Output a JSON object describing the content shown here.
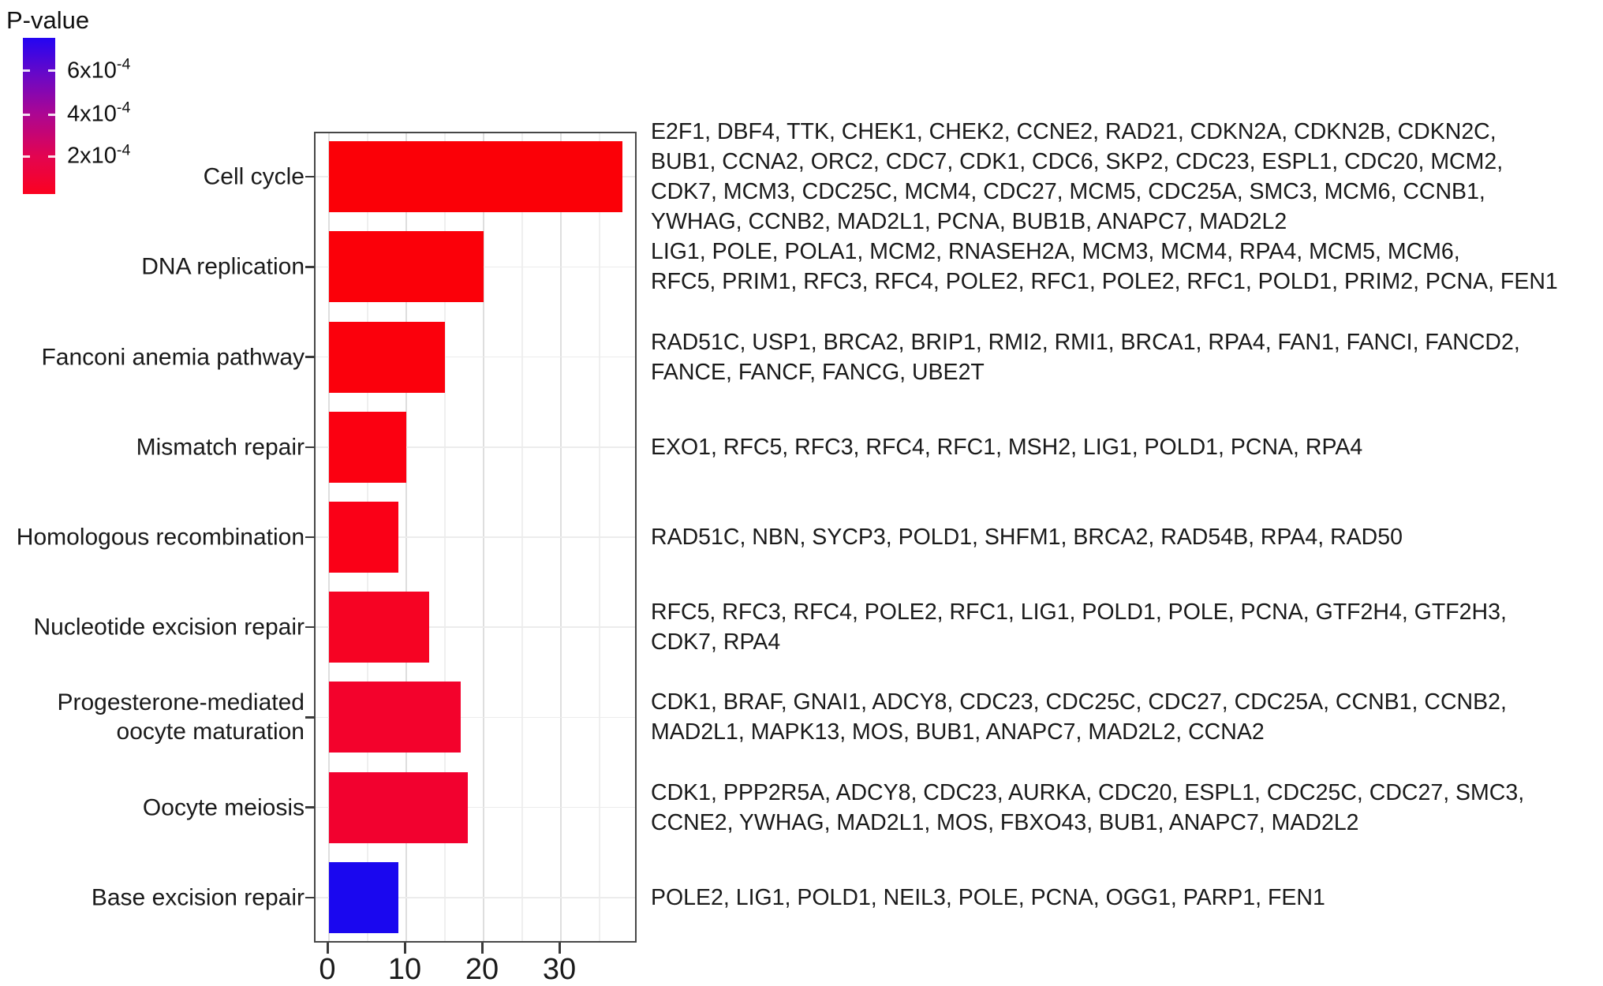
{
  "legend": {
    "title": "P-value",
    "ticks": [
      {
        "base": "6x10",
        "exp": "-4",
        "pos_pct": 21
      },
      {
        "base": "4x10",
        "exp": "-4",
        "pos_pct": 49
      },
      {
        "base": "2x10",
        "exp": "-4",
        "pos_pct": 76
      }
    ],
    "gradient": [
      {
        "color": "#2405F2",
        "stop": 0
      },
      {
        "color": "#6A08C6",
        "stop": 24
      },
      {
        "color": "#AA0694",
        "stop": 48
      },
      {
        "color": "#E30450",
        "stop": 76
      },
      {
        "color": "#FB0220",
        "stop": 100
      }
    ]
  },
  "chart_data": {
    "type": "bar",
    "orientation": "horizontal",
    "title": "",
    "xlabel": "",
    "ylabel": "",
    "xlim": [
      0,
      40
    ],
    "x_ticks": [
      "0",
      "10",
      "20",
      "30"
    ],
    "x_tick_values": [
      0,
      10,
      20,
      30
    ],
    "grid": "on",
    "legend_position": "top-left",
    "color_scale_label": "P-value",
    "categories": [
      "Cell cycle",
      "DNA replication",
      "Fanconi anemia pathway",
      "Mismatch repair",
      "Homologous recombination",
      "Nucleotide excision repair",
      "Progesterone-mediated oocyte maturation",
      "Oocyte meiosis",
      "Base excision repair"
    ],
    "values": [
      38,
      20,
      15,
      10,
      9,
      13,
      17,
      18,
      9
    ],
    "rows": [
      {
        "label_lines": [
          "Cell cycle"
        ],
        "value": 38,
        "color": "#FB0007",
        "gene_lines": [
          "E2F1, DBF4, TTK, CHEK1, CHEK2, CCNE2, RAD21, CDKN2A, CDKN2B, CDKN2C,",
          "BUB1, CCNA2, ORC2, CDC7, CDK1, CDC6, SKP2, CDC23, ESPL1, CDC20, MCM2,",
          "CDK7, MCM3, CDC25C, MCM4, CDC27, MCM5, CDC25A, SMC3, MCM6, CCNB1,",
          "YWHAG, CCNB2, MAD2L1, PCNA, BUB1B, ANAPC7, MAD2L2"
        ]
      },
      {
        "label_lines": [
          "DNA replication"
        ],
        "value": 20,
        "color": "#FB0009",
        "gene_lines": [
          "LIG1, POLE, POLA1, MCM2, RNASEH2A, MCM3, MCM4, RPA4, MCM5, MCM6,",
          "RFC5, PRIM1, RFC3, RFC4, POLE2, RFC1, POLE2, RFC1, POLD1, PRIM2, PCNA, FEN1"
        ]
      },
      {
        "label_lines": [
          "Fanconi anemia pathway"
        ],
        "value": 15,
        "color": "#FB000C",
        "gene_lines": [
          "RAD51C, USP1, BRCA2, BRIP1, RMI2, RMI1, BRCA1, RPA4, FAN1, FANCI, FANCD2,",
          "FANCE, FANCF, FANCG, UBE2T"
        ]
      },
      {
        "label_lines": [
          "Mismatch repair"
        ],
        "value": 10,
        "color": "#FB0011",
        "gene_lines": [
          "EXO1, RFC5, RFC3, RFC4, RFC1, MSH2, LIG1, POLD1, PCNA, RPA4"
        ]
      },
      {
        "label_lines": [
          "Homologous recombination"
        ],
        "value": 9,
        "color": "#FA0017",
        "gene_lines": [
          "RAD51C, NBN, SYCP3, POLD1, SHFM1, BRCA2, RAD54B, RPA4, RAD50"
        ]
      },
      {
        "label_lines": [
          "Nucleotide excision repair"
        ],
        "value": 13,
        "color": "#F60323",
        "gene_lines": [
          "RFC5, RFC3, RFC4, POLE2, RFC1, LIG1, POLD1, POLE, PCNA, GTF2H4, GTF2H3,",
          "CDK7, RPA4"
        ]
      },
      {
        "label_lines": [
          "Progesterone-mediated",
          "oocyte maturation"
        ],
        "value": 17,
        "color": "#F3022C",
        "gene_lines": [
          "CDK1, BRAF, GNAI1, ADCY8, CDC23, CDC25C, CDC27, CDC25A, CCNB1, CCNB2,",
          "MAD2L1, MAPK13, MOS, BUB1, ANAPC7, MAD2L2, CCNA2"
        ]
      },
      {
        "label_lines": [
          "Oocyte meiosis"
        ],
        "value": 18,
        "color": "#F2012F",
        "gene_lines": [
          "CDK1, PPP2R5A, ADCY8, CDC23, AURKA, CDC20, ESPL1, CDC25C, CDC27, SMC3,",
          "CCNE2, YWHAG, MAD2L1, MOS, FBXO43, BUB1, ANAPC7, MAD2L2"
        ]
      },
      {
        "label_lines": [
          "Base excision repair"
        ],
        "value": 9,
        "color": "#1A07EF",
        "gene_lines": [
          "POLE2, LIG1, POLD1, NEIL3, POLE, PCNA, OGG1, PARP1, FEN1"
        ]
      }
    ]
  }
}
